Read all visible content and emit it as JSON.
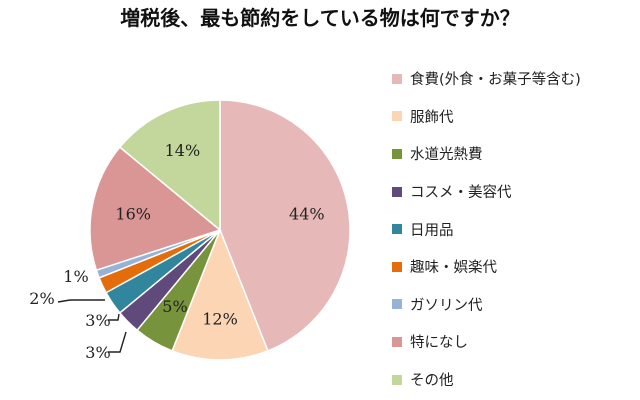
{
  "chart_data": {
    "type": "pie",
    "title": "増税後、最も節約をしている物は何ですか？",
    "legend_position": "right",
    "categories": [
      "食費(外食・お菓子等含む)",
      "服飾代",
      "水道光熱費",
      "コスメ・美容代",
      "日用品",
      "趣味・娯楽代",
      "ガソリン代",
      "特になし",
      "その他"
    ],
    "values": [
      44,
      12,
      5,
      3,
      3,
      2,
      1,
      16,
      14
    ],
    "data_labels": [
      "44%",
      "12%",
      "5%",
      "3%",
      "3%",
      "2%",
      "1%",
      "16%",
      "14%"
    ],
    "colors": [
      "#E6B9B8",
      "#FCD5B5",
      "#77933C",
      "#604A7B",
      "#31859C",
      "#E46C0A",
      "#95B3D7",
      "#D99694",
      "#C3D69B"
    ]
  }
}
